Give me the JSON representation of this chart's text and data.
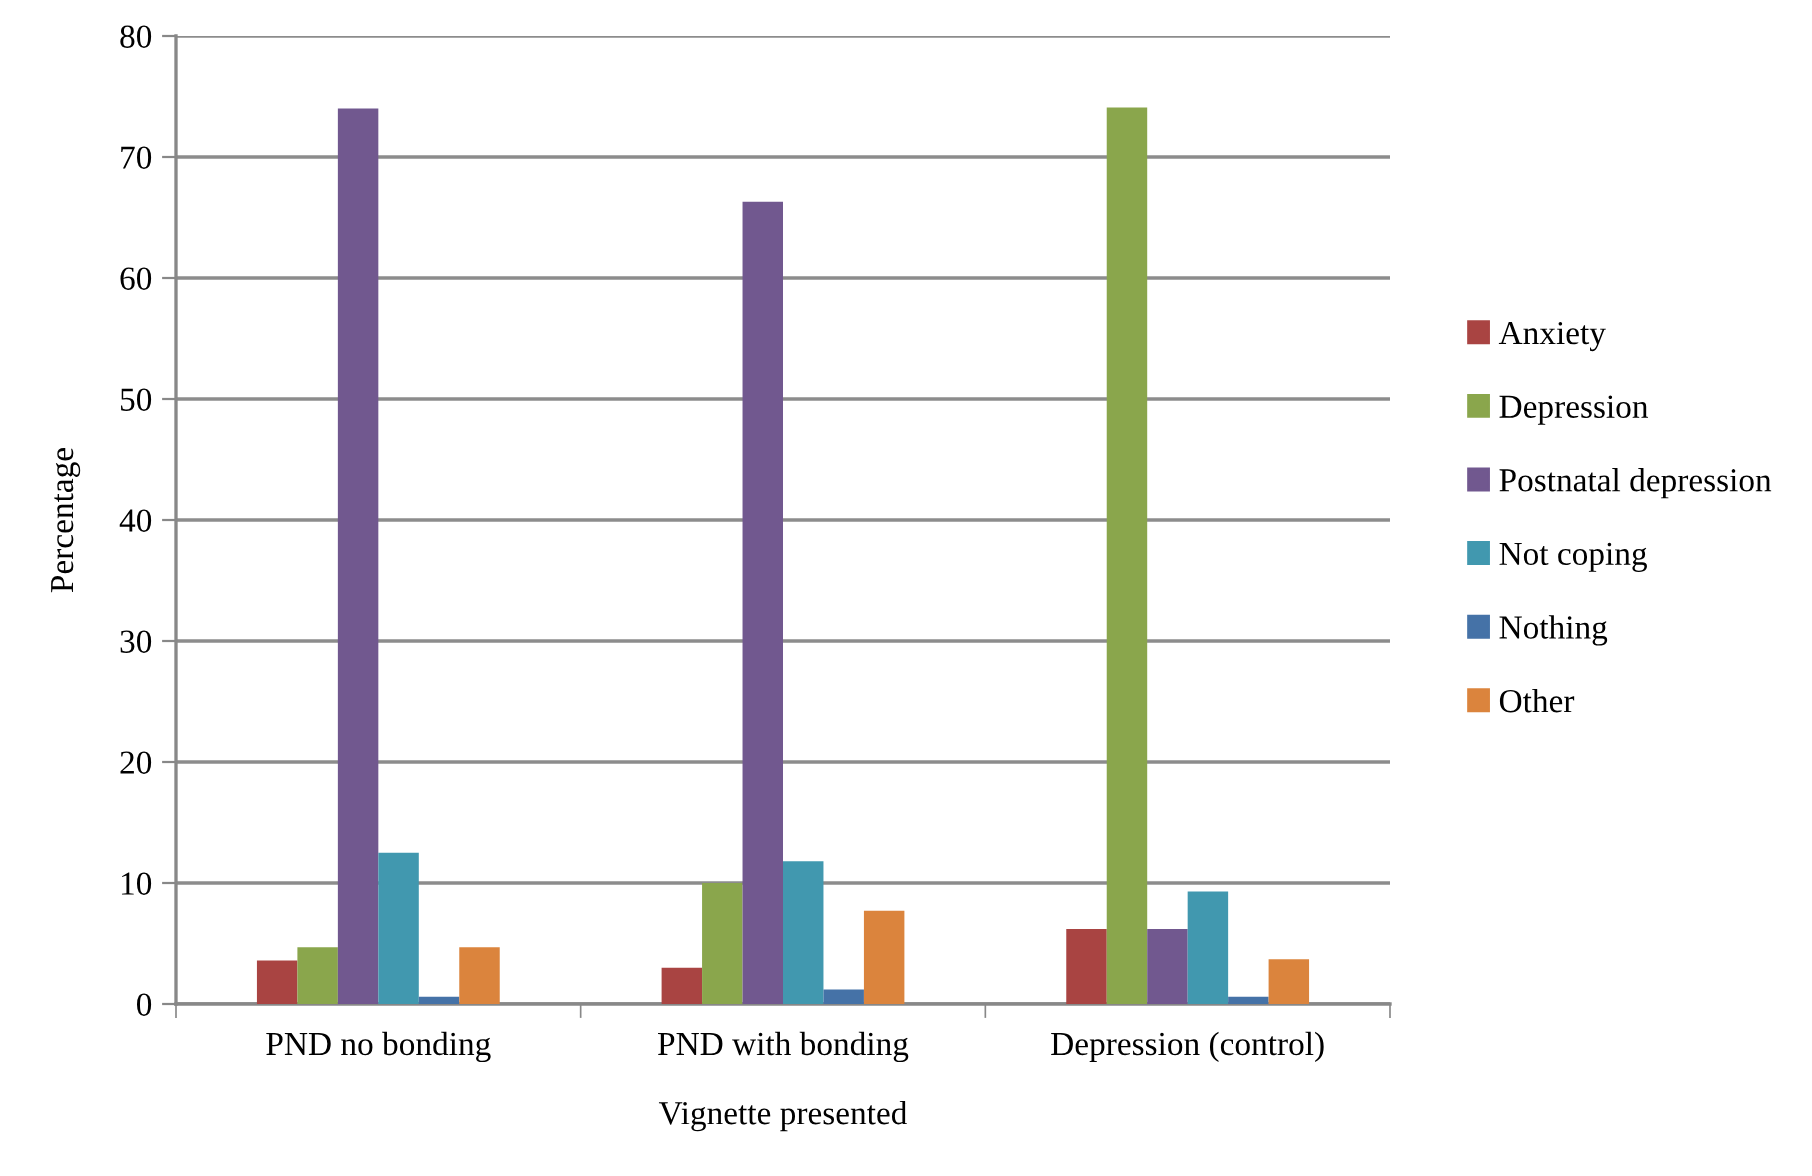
{
  "chart_data": {
    "type": "bar",
    "xlabel": "Vignette presented",
    "ylabel": "Percentage",
    "categories": [
      "PND no bonding",
      "PND with bonding",
      "Depression (control)"
    ],
    "series": [
      {
        "name": "Anxiety",
        "color": "#a94442",
        "values": [
          3.6,
          3.0,
          6.2
        ]
      },
      {
        "name": "Depression",
        "color": "#8aa64c",
        "values": [
          4.7,
          10.0,
          74.1
        ]
      },
      {
        "name": "Postnatal depression",
        "color": "#71588f",
        "values": [
          74.0,
          66.3,
          6.2
        ]
      },
      {
        "name": "Not coping",
        "color": "#4198af",
        "values": [
          12.5,
          11.8,
          9.3
        ]
      },
      {
        "name": "Nothing",
        "color": "#4572a7",
        "values": [
          0.6,
          1.2,
          0.6
        ]
      },
      {
        "name": "Other",
        "color": "#db843d",
        "values": [
          4.7,
          7.7,
          3.7
        ]
      }
    ],
    "ylim": [
      0,
      80
    ],
    "yticks": [
      0,
      10,
      20,
      30,
      40,
      50,
      60,
      70,
      80
    ],
    "grid": "y",
    "legend": "right"
  }
}
